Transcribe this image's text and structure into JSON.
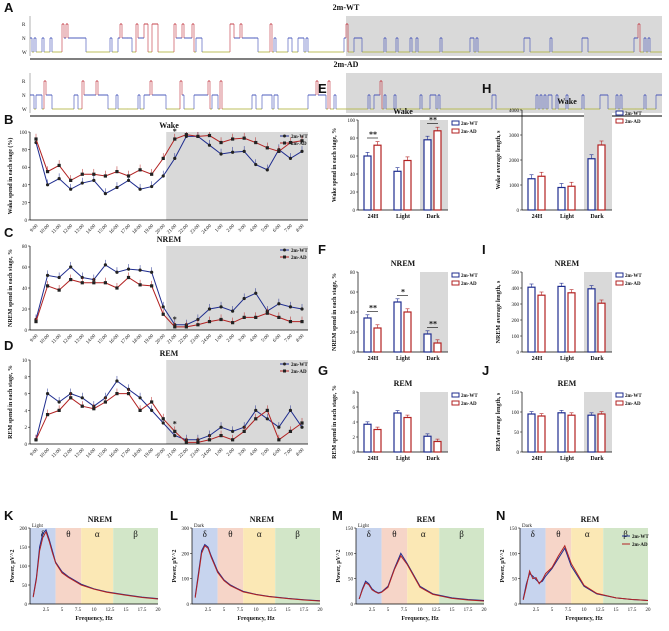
{
  "panel_labels": [
    "A",
    "B",
    "C",
    "D",
    "E",
    "F",
    "G",
    "H",
    "I",
    "J",
    "K",
    "L",
    "M",
    "N"
  ],
  "colors": {
    "wt": "#1f2d8f",
    "ad": "#b22222",
    "shade": "#d9d9d9",
    "hypno_w": "#b5b84a",
    "hypno_n": "#3a4ab5",
    "hypno_r": "#c0303a",
    "band_delta": "#c7d4ee",
    "band_theta": "#f6d5c8",
    "band_alpha": "#fbe8b5",
    "band_beta": "#d2e6c8"
  },
  "hypnogram": {
    "wt_title": "2m-WT",
    "ad_title": "2m-AD",
    "levels": [
      "R",
      "N",
      "W"
    ]
  },
  "time_ticks": [
    "9:00",
    "10:00",
    "11:00",
    "12:00",
    "13:00",
    "14:00",
    "15:00",
    "16:00",
    "17:00",
    "18:00",
    "19:00",
    "20:00",
    "21:00",
    "22:00",
    "23:00",
    "24:00",
    "1:00",
    "2:00",
    "3:00",
    "4:00",
    "5:00",
    "6:00",
    "7:00",
    "8:00"
  ],
  "legend": {
    "wt": "2m-WT",
    "ad": "2m-AD"
  },
  "chart_data": [
    {
      "id": "B",
      "type": "line",
      "title": "Wake",
      "ylabel": "Wake spend in each stage (%)",
      "ylim": [
        0,
        100
      ],
      "yticks": [
        0,
        20,
        40,
        60,
        80,
        100
      ],
      "series": [
        {
          "name": "2m-WT",
          "values": [
            88,
            40,
            47,
            35,
            42,
            45,
            30,
            37,
            45,
            35,
            38,
            50,
            70,
            95,
            95,
            85,
            75,
            77,
            78,
            63,
            57,
            80,
            70,
            78
          ]
        },
        {
          "name": "2m-AD",
          "values": [
            92,
            55,
            62,
            45,
            52,
            52,
            50,
            55,
            50,
            57,
            52,
            70,
            92,
            97,
            95,
            96,
            88,
            92,
            93,
            88,
            82,
            78,
            88,
            90
          ]
        }
      ],
      "annotations": [
        "*"
      ]
    },
    {
      "id": "C",
      "type": "line",
      "title": "NREM",
      "ylabel": "NREM spend in each stage, %",
      "ylim": [
        0,
        80
      ],
      "yticks": [
        0,
        20,
        40,
        60,
        80
      ],
      "series": [
        {
          "name": "2m-WT",
          "values": [
            10,
            52,
            50,
            60,
            50,
            48,
            62,
            55,
            58,
            57,
            55,
            22,
            5,
            5,
            10,
            20,
            22,
            18,
            30,
            35,
            18,
            25,
            22,
            20
          ]
        },
        {
          "name": "2m-AD",
          "values": [
            8,
            42,
            38,
            48,
            45,
            45,
            45,
            40,
            50,
            43,
            42,
            15,
            3,
            3,
            5,
            8,
            10,
            7,
            12,
            12,
            16,
            12,
            8,
            8
          ]
        }
      ],
      "annotations": [
        "*"
      ]
    },
    {
      "id": "D",
      "type": "line",
      "title": "REM",
      "ylabel": "REM spend in each stage, %",
      "ylim": [
        0,
        10
      ],
      "yticks": [
        0,
        2,
        4,
        6,
        8,
        10
      ],
      "series": [
        {
          "name": "2m-WT",
          "values": [
            0.5,
            6,
            5,
            6,
            5.5,
            4.5,
            5.5,
            7.5,
            6.5,
            5.5,
            4,
            2.5,
            1,
            0.5,
            0.5,
            1,
            2,
            1.5,
            2,
            4,
            3,
            2,
            4,
            2
          ]
        },
        {
          "name": "2m-AD",
          "values": [
            0.5,
            3.5,
            4,
            5.5,
            4.5,
            4.2,
            5,
            6,
            6,
            4,
            5,
            3,
            1.5,
            0.2,
            0.2,
            0.5,
            1,
            0.5,
            1.5,
            3,
            4,
            0.5,
            1.5,
            2.5
          ]
        }
      ],
      "annotations": [
        "*"
      ]
    },
    {
      "id": "E",
      "type": "bar",
      "title": "Wake",
      "ylabel": "Wake spend in each stage, %",
      "categories": [
        "24H",
        "Light",
        "Dark"
      ],
      "ylim": [
        0,
        100
      ],
      "yticks": [
        0,
        20,
        40,
        60,
        80,
        100
      ],
      "series": [
        {
          "name": "2m-WT",
          "values": [
            60,
            43,
            78
          ]
        },
        {
          "name": "2m-AD",
          "values": [
            72,
            55,
            88
          ]
        }
      ],
      "sig": [
        "**",
        "",
        "**"
      ]
    },
    {
      "id": "F",
      "type": "bar",
      "title": "NREM",
      "ylabel": "NREM spend in each stage, %",
      "categories": [
        "24H",
        "Light",
        "Dark"
      ],
      "ylim": [
        0,
        80
      ],
      "yticks": [
        0,
        20,
        40,
        60,
        80
      ],
      "series": [
        {
          "name": "2m-WT",
          "values": [
            34,
            50,
            18
          ]
        },
        {
          "name": "2m-AD",
          "values": [
            24,
            40,
            9
          ]
        }
      ],
      "sig": [
        "**",
        "*",
        "**"
      ]
    },
    {
      "id": "G",
      "type": "bar",
      "title": "REM",
      "ylabel": "REM spend in each stage, %",
      "categories": [
        "24H",
        "Light",
        "Dark"
      ],
      "ylim": [
        0,
        8
      ],
      "yticks": [
        0,
        2,
        4,
        6,
        8
      ],
      "series": [
        {
          "name": "2m-WT",
          "values": [
            3.7,
            5.2,
            2.1
          ]
        },
        {
          "name": "2m-AD",
          "values": [
            3.0,
            4.6,
            1.4
          ]
        }
      ],
      "sig": [
        "",
        "",
        ""
      ]
    },
    {
      "id": "H",
      "type": "bar",
      "title": "Wake",
      "ylabel": "Wake average length, s",
      "categories": [
        "24H",
        "Light",
        "Dark"
      ],
      "ylim": [
        0,
        4000
      ],
      "yticks": [
        0,
        1000,
        2000,
        3000,
        4000
      ],
      "series": [
        {
          "name": "2m-WT",
          "values": [
            1250,
            900,
            2050
          ]
        },
        {
          "name": "2m-AD",
          "values": [
            1350,
            950,
            2600
          ]
        }
      ],
      "sig": [
        "",
        "",
        ""
      ]
    },
    {
      "id": "I",
      "type": "bar",
      "title": "NREM",
      "ylabel": "NREM average length, s",
      "categories": [
        "24H",
        "Light",
        "Dark"
      ],
      "ylim": [
        0,
        500
      ],
      "yticks": [
        0,
        100,
        200,
        300,
        400,
        500
      ],
      "series": [
        {
          "name": "2m-WT",
          "values": [
            405,
            410,
            395
          ]
        },
        {
          "name": "2m-AD",
          "values": [
            355,
            370,
            305
          ]
        }
      ],
      "sig": [
        "",
        "",
        ""
      ]
    },
    {
      "id": "J",
      "type": "bar",
      "title": "REM",
      "ylabel": "REM average length, s",
      "categories": [
        "24H",
        "Light",
        "Dark"
      ],
      "ylim": [
        0,
        150
      ],
      "yticks": [
        0,
        50,
        100,
        150
      ],
      "series": [
        {
          "name": "2m-WT",
          "values": [
            95,
            98,
            92
          ]
        },
        {
          "name": "2m-AD",
          "values": [
            90,
            92,
            95
          ]
        }
      ],
      "sig": [
        "",
        "",
        ""
      ]
    },
    {
      "id": "K",
      "type": "line",
      "title": "NREM",
      "period": "Light",
      "ylabel": "Power, μV^2",
      "xlabel": "Frequency, Hz",
      "ylim": [
        0,
        200
      ],
      "yticks": [
        0,
        50,
        100,
        150,
        200
      ],
      "x": [
        0.5,
        1,
        1.5,
        2,
        2.5,
        3,
        3.5,
        4,
        5,
        6,
        7,
        8,
        10,
        12,
        15,
        17.5,
        20
      ],
      "series": [
        {
          "name": "2m-WT",
          "values": [
            20,
            70,
            150,
            185,
            195,
            170,
            140,
            110,
            85,
            72,
            62,
            52,
            40,
            32,
            24,
            18,
            14
          ]
        },
        {
          "name": "2m-AD",
          "values": [
            18,
            65,
            140,
            175,
            190,
            165,
            135,
            108,
            82,
            70,
            60,
            50,
            39,
            31,
            23,
            17,
            13
          ]
        }
      ]
    },
    {
      "id": "L",
      "type": "line",
      "title": "NREM",
      "period": "Dark",
      "ylabel": "Power, μV^2",
      "xlabel": "Frequency, Hz",
      "ylim": [
        0,
        300
      ],
      "yticks": [
        0,
        100,
        200,
        300
      ],
      "x": [
        0.5,
        1,
        1.5,
        2,
        2.5,
        3,
        3.5,
        4,
        5,
        6,
        7,
        8,
        10,
        12,
        15,
        17.5,
        20
      ],
      "series": [
        {
          "name": "2m-WT",
          "values": [
            30,
            120,
            210,
            235,
            225,
            190,
            160,
            130,
            95,
            75,
            62,
            50,
            38,
            30,
            22,
            17,
            13
          ]
        },
        {
          "name": "2m-AD",
          "values": [
            25,
            110,
            200,
            230,
            220,
            185,
            155,
            125,
            92,
            72,
            60,
            48,
            37,
            29,
            21,
            16,
            12
          ]
        }
      ]
    },
    {
      "id": "M",
      "type": "line",
      "title": "REM",
      "period": "Light",
      "ylabel": "Power, μV^2",
      "xlabel": "Frequency, Hz",
      "ylim": [
        0,
        150
      ],
      "yticks": [
        0,
        50,
        100,
        150
      ],
      "x": [
        0.5,
        1,
        1.5,
        2,
        2.5,
        3,
        3.5,
        4,
        5,
        6,
        7,
        8,
        10,
        12,
        15,
        17.5,
        20
      ],
      "series": [
        {
          "name": "2m-WT",
          "values": [
            10,
            30,
            45,
            40,
            30,
            25,
            22,
            24,
            35,
            70,
            100,
            80,
            35,
            20,
            12,
            9,
            7
          ]
        },
        {
          "name": "2m-AD",
          "values": [
            10,
            28,
            42,
            38,
            28,
            24,
            21,
            23,
            33,
            68,
            95,
            78,
            33,
            19,
            11,
            8,
            6
          ]
        }
      ]
    },
    {
      "id": "N",
      "type": "line",
      "title": "REM",
      "period": "Dark",
      "ylabel": "Power, μV^2",
      "xlabel": "Frequency, Hz",
      "ylim": [
        0,
        150
      ],
      "yticks": [
        0,
        50,
        100,
        150
      ],
      "x": [
        0.5,
        1,
        1.5,
        2,
        2.5,
        3,
        3.5,
        4,
        5,
        6,
        7,
        8,
        10,
        12,
        15,
        17.5,
        20
      ],
      "series": [
        {
          "name": "2m-WT",
          "values": [
            10,
            40,
            60,
            55,
            48,
            42,
            45,
            55,
            70,
            90,
            110,
            75,
            35,
            20,
            12,
            9,
            7
          ]
        },
        {
          "name": "2m-AD",
          "values": [
            8,
            35,
            65,
            50,
            52,
            40,
            48,
            60,
            72,
            95,
            115,
            80,
            37,
            21,
            12,
            9,
            7
          ]
        }
      ]
    }
  ],
  "freq_ticks": [
    "2.5",
    "5",
    "7.5",
    "10",
    "12.5",
    "15",
    "17.5",
    "20"
  ],
  "bands": [
    "δ",
    "θ",
    "α",
    "β"
  ]
}
